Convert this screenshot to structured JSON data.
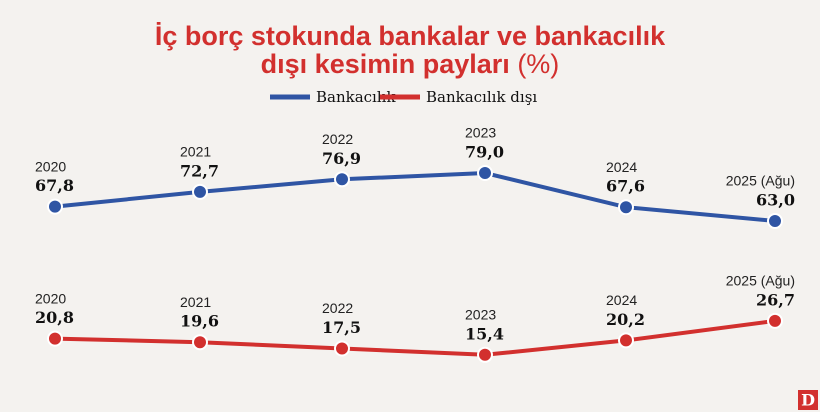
{
  "chart_data": {
    "type": "line",
    "title": [
      "İç borç stokunda bankalar ve bankacılık",
      "dışı kesimin payları"
    ],
    "title_unit": "(%)",
    "categories": [
      "2020",
      "2021",
      "2022",
      "2023",
      "2024",
      "2025 (Ağu)"
    ],
    "series": [
      {
        "name": "Bankacılık",
        "color": "#2f55a4",
        "values": [
          67.8,
          72.7,
          76.9,
          79.0,
          67.6,
          63.0
        ],
        "value_labels": [
          "67,8",
          "72,7",
          "76,9",
          "79,0",
          "67,6",
          "63,0"
        ]
      },
      {
        "name": "Bankacılık dışı",
        "color": "#d2302e",
        "values": [
          20.8,
          19.6,
          17.5,
          15.4,
          20.2,
          26.7
        ],
        "value_labels": [
          "20,8",
          "19,6",
          "17,5",
          "15,4",
          "20,2",
          "26,7"
        ]
      }
    ],
    "logo": "D"
  }
}
